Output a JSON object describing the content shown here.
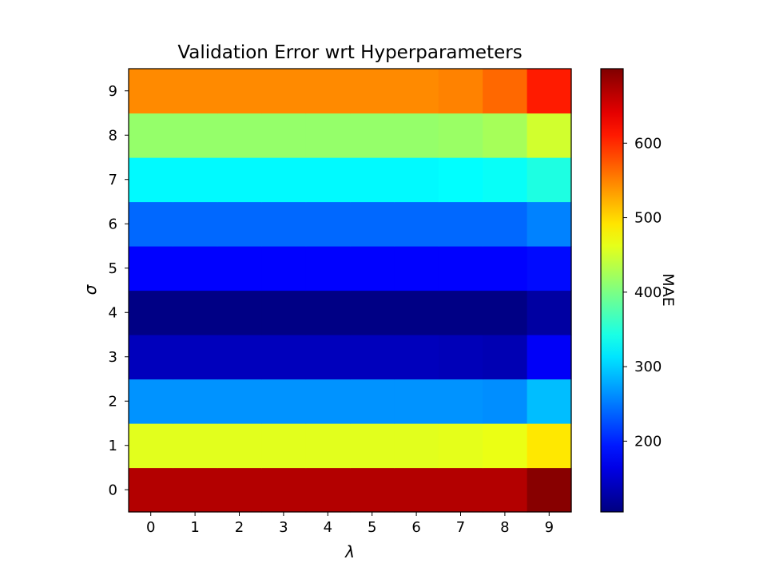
{
  "chart_data": {
    "type": "heatmap",
    "title": "Validation Error wrt Hyperparameters",
    "xlabel": "λ",
    "ylabel": "σ",
    "x_categories": [
      "0",
      "1",
      "2",
      "3",
      "4",
      "5",
      "6",
      "7",
      "8",
      "9"
    ],
    "y_categories": [
      "0",
      "1",
      "2",
      "3",
      "4",
      "5",
      "6",
      "7",
      "8",
      "9"
    ],
    "colormap": "jet",
    "colorbar": {
      "label": "MAE",
      "range": [
        105,
        700
      ],
      "ticks": [
        200,
        300,
        400,
        500,
        600
      ]
    },
    "values": [
      [
        670,
        670,
        670,
        670,
        670,
        670,
        670,
        670,
        670,
        695
      ],
      [
        460,
        460,
        460,
        460,
        460,
        460,
        460,
        462,
        465,
        490
      ],
      [
        265,
        265,
        265,
        265,
        265,
        265,
        265,
        265,
        262,
        290
      ],
      [
        140,
        140,
        140,
        140,
        140,
        140,
        140,
        138,
        135,
        175
      ],
      [
        108,
        108,
        108,
        108,
        108,
        108,
        108,
        108,
        108,
        125
      ],
      [
        180,
        180,
        180,
        180,
        180,
        180,
        180,
        180,
        180,
        185
      ],
      [
        240,
        240,
        240,
        240,
        240,
        240,
        240,
        240,
        240,
        255
      ],
      [
        325,
        325,
        325,
        325,
        325,
        325,
        325,
        328,
        332,
        345
      ],
      [
        415,
        415,
        415,
        415,
        415,
        415,
        415,
        418,
        425,
        450
      ],
      [
        545,
        545,
        545,
        545,
        545,
        545,
        545,
        550,
        565,
        610
      ]
    ]
  }
}
